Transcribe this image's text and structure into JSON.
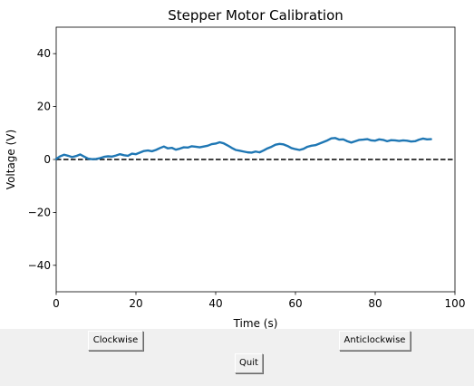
{
  "window": {
    "buttons": {
      "clockwise": "Clockwise",
      "anticlockwise": "Anticlockwise",
      "quit": "Quit"
    }
  },
  "chart_data": {
    "type": "line",
    "title": "Stepper Motor Calibration",
    "xlabel": "Time (s)",
    "ylabel": "Voltage (V)",
    "xlim": [
      0,
      100
    ],
    "ylim": [
      -50,
      50
    ],
    "xticks": [
      0,
      20,
      40,
      60,
      80,
      100
    ],
    "yticks": [
      -40,
      -20,
      0,
      20,
      40
    ],
    "ytick_labels": [
      "−40",
      "−20",
      "0",
      "20",
      "40"
    ],
    "grid": false,
    "reference_line": {
      "y": 0,
      "style": "dashed",
      "color": "#000000"
    },
    "series": [
      {
        "color": "#1f77b4",
        "x": [
          0,
          1,
          2,
          3,
          4,
          5,
          6,
          7,
          8,
          9,
          10,
          11,
          12,
          13,
          14,
          15,
          16,
          17,
          18,
          19,
          20,
          21,
          22,
          23,
          24,
          25,
          26,
          27,
          28,
          29,
          30,
          31,
          32,
          33,
          34,
          35,
          36,
          37,
          38,
          39,
          40,
          41,
          42,
          43,
          44,
          45,
          46,
          47,
          48,
          49,
          50,
          51,
          52,
          53,
          54,
          55,
          56,
          57,
          58,
          59,
          60,
          61,
          62,
          63,
          64,
          65,
          66,
          67,
          68,
          69,
          70,
          71,
          72,
          73,
          74,
          75,
          76,
          77,
          78,
          79,
          80,
          81,
          82,
          83,
          84,
          85,
          86,
          87,
          88,
          89,
          90,
          91,
          92,
          93,
          94
        ],
        "y": [
          0.2,
          1.2,
          1.8,
          1.4,
          0.9,
          1.3,
          1.9,
          1.1,
          0.3,
          0.1,
          0.2,
          0.5,
          1.0,
          1.2,
          1.1,
          1.5,
          2.0,
          1.6,
          1.4,
          2.2,
          2.0,
          2.6,
          3.2,
          3.4,
          3.1,
          3.6,
          4.3,
          4.9,
          4.2,
          4.4,
          3.7,
          4.1,
          4.6,
          4.5,
          5.0,
          4.8,
          4.6,
          4.9,
          5.2,
          5.8,
          6.0,
          6.5,
          6.1,
          5.3,
          4.4,
          3.6,
          3.3,
          3.0,
          2.7,
          2.6,
          3.0,
          2.7,
          3.4,
          4.2,
          4.8,
          5.6,
          5.9,
          5.7,
          5.1,
          4.3,
          3.9,
          3.6,
          4.0,
          4.8,
          5.2,
          5.4,
          6.0,
          6.6,
          7.2,
          8.0,
          8.1,
          7.5,
          7.6,
          6.9,
          6.4,
          6.9,
          7.4,
          7.5,
          7.7,
          7.2,
          7.1,
          7.6,
          7.4,
          6.9,
          7.3,
          7.2,
          7.0,
          7.2,
          7.1,
          6.8,
          6.9,
          7.5,
          7.9,
          7.6,
          7.7
        ]
      }
    ]
  }
}
